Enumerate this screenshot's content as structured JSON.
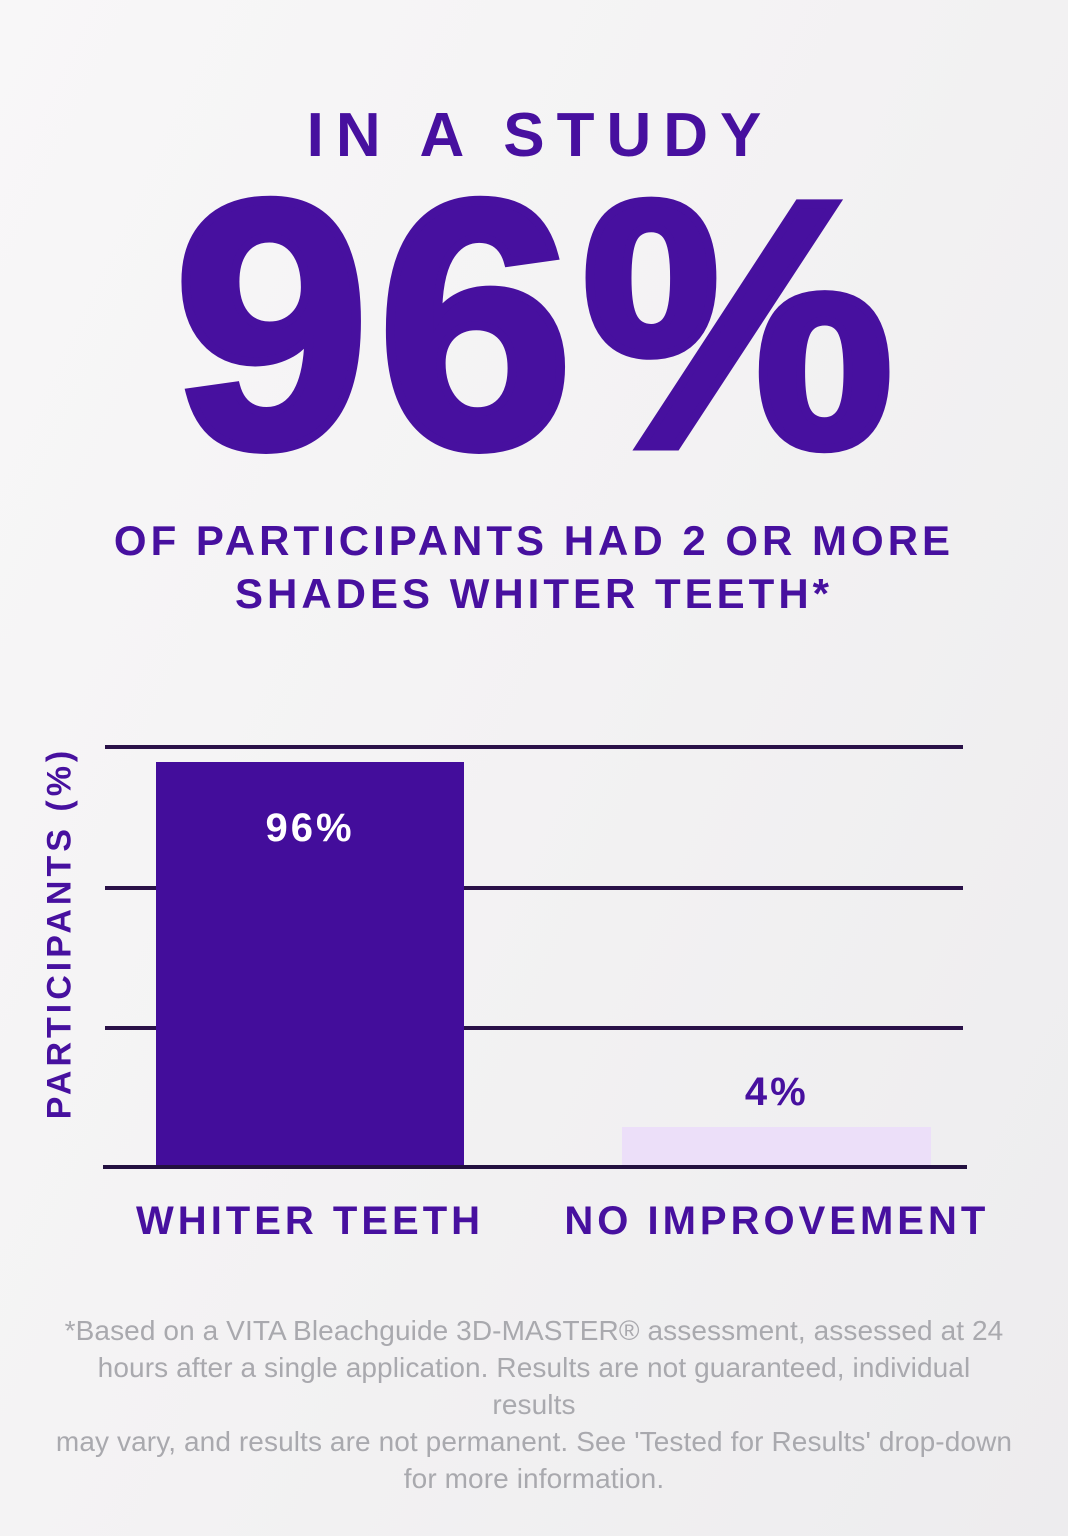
{
  "header": {
    "kicker": "IN A STUDY",
    "big_stat": "96%",
    "subtitle": "OF PARTICIPANTS HAD 2 OR MORE SHADES WHITER TEETH*"
  },
  "chart_data": {
    "type": "bar",
    "title": "",
    "categories": [
      "WHITER TEETH",
      "NO IMPROVEMENT"
    ],
    "values": [
      96,
      4
    ],
    "value_labels": [
      "96%",
      "4%"
    ],
    "value_label_positions": [
      "inside-top",
      "above-bar"
    ],
    "xlabel": "",
    "ylabel": "PARTICIPANTS (%)",
    "ylim": [
      0,
      100
    ],
    "grid": "horizontal, 4 lines at 0/33/67/100, no tick labels",
    "legend": "none",
    "bar_colors": [
      "#430d9b",
      "#ecdff9"
    ],
    "value_label_colors": [
      "#ffffff",
      "#47109f"
    ]
  },
  "footnote": {
    "lines": [
      "*Based on a VITA Bleachguide 3D-MASTER® assessment, assessed at 24",
      "hours after a single application. Results are not guaranteed, individual results",
      "may vary, and results are not permanent. See 'Tested for Results' drop-down",
      "for more information."
    ]
  },
  "colors": {
    "accent_purple": "#47109f",
    "bar_dark_purple": "#430d9b",
    "bar_light_lavender": "#ecdff9",
    "gridline": "#2a1148",
    "axis_line": "#231040",
    "footnote_gray": "#a9a9ae",
    "background": "#f3f2f3"
  }
}
